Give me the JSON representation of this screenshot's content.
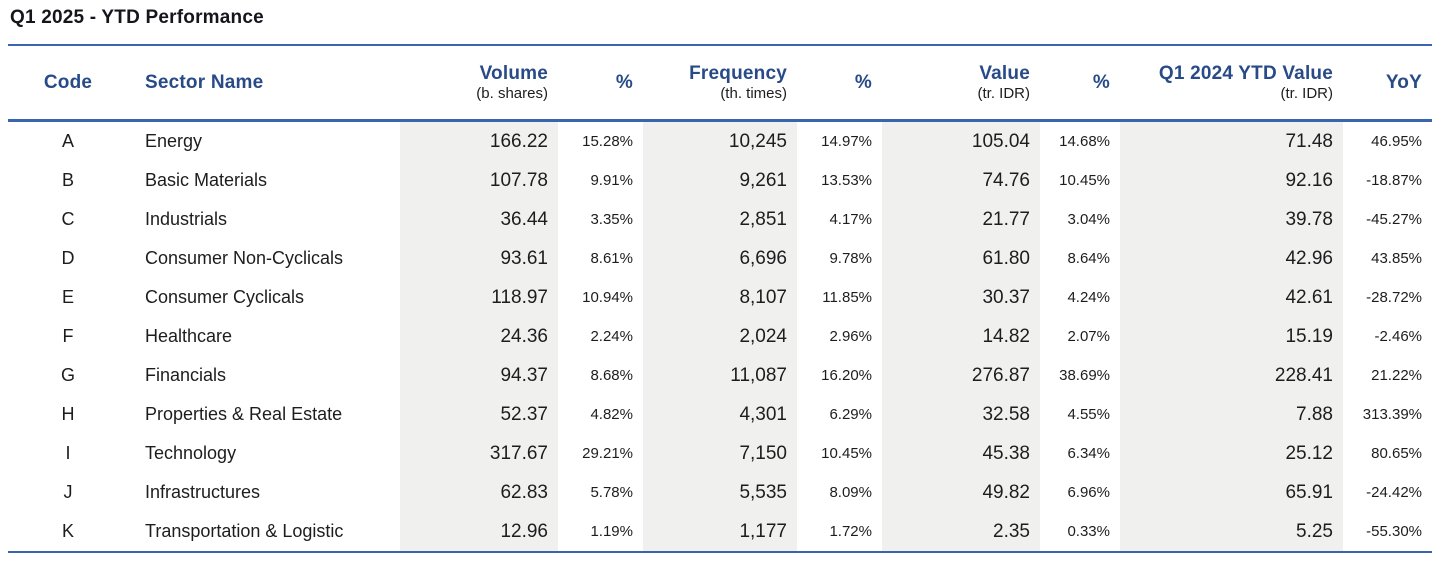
{
  "title": "Q1 2025 - YTD Performance",
  "colors": {
    "header_blue": "#284b87",
    "rule_blue": "#3a64ad",
    "column_stripe_gray": "#f0f0ee",
    "text_dark": "#1d1d1f"
  },
  "chart_data": {
    "type": "table",
    "title": "Q1 2025 - YTD Performance",
    "columns": [
      {
        "key": "code",
        "label": "Code",
        "unit": ""
      },
      {
        "key": "sector",
        "label": "Sector Name",
        "unit": ""
      },
      {
        "key": "volume",
        "label": "Volume",
        "unit": "(b. shares)"
      },
      {
        "key": "volume_pct",
        "label": "%",
        "unit": ""
      },
      {
        "key": "frequency",
        "label": "Frequency",
        "unit": "(th. times)"
      },
      {
        "key": "frequency_pct",
        "label": "%",
        "unit": ""
      },
      {
        "key": "value",
        "label": "Value",
        "unit": "(tr. IDR)"
      },
      {
        "key": "value_pct",
        "label": "%",
        "unit": ""
      },
      {
        "key": "q1_2024_ytd_value",
        "label": "Q1 2024 YTD Value",
        "unit": "(tr. IDR)"
      },
      {
        "key": "yoy",
        "label": "YoY",
        "unit": ""
      }
    ],
    "rows": [
      {
        "code": "A",
        "sector": "Energy",
        "volume": "166.22",
        "volume_pct": "15.28%",
        "frequency": "10,245",
        "frequency_pct": "14.97%",
        "value": "105.04",
        "value_pct": "14.68%",
        "q1_2024_ytd_value": "71.48",
        "yoy": "46.95%"
      },
      {
        "code": "B",
        "sector": "Basic Materials",
        "volume": "107.78",
        "volume_pct": "9.91%",
        "frequency": "9,261",
        "frequency_pct": "13.53%",
        "value": "74.76",
        "value_pct": "10.45%",
        "q1_2024_ytd_value": "92.16",
        "yoy": "-18.87%"
      },
      {
        "code": "C",
        "sector": "Industrials",
        "volume": "36.44",
        "volume_pct": "3.35%",
        "frequency": "2,851",
        "frequency_pct": "4.17%",
        "value": "21.77",
        "value_pct": "3.04%",
        "q1_2024_ytd_value": "39.78",
        "yoy": "-45.27%"
      },
      {
        "code": "D",
        "sector": "Consumer Non-Cyclicals",
        "volume": "93.61",
        "volume_pct": "8.61%",
        "frequency": "6,696",
        "frequency_pct": "9.78%",
        "value": "61.80",
        "value_pct": "8.64%",
        "q1_2024_ytd_value": "42.96",
        "yoy": "43.85%"
      },
      {
        "code": "E",
        "sector": "Consumer Cyclicals",
        "volume": "118.97",
        "volume_pct": "10.94%",
        "frequency": "8,107",
        "frequency_pct": "11.85%",
        "value": "30.37",
        "value_pct": "4.24%",
        "q1_2024_ytd_value": "42.61",
        "yoy": "-28.72%"
      },
      {
        "code": "F",
        "sector": "Healthcare",
        "volume": "24.36",
        "volume_pct": "2.24%",
        "frequency": "2,024",
        "frequency_pct": "2.96%",
        "value": "14.82",
        "value_pct": "2.07%",
        "q1_2024_ytd_value": "15.19",
        "yoy": "-2.46%"
      },
      {
        "code": "G",
        "sector": "Financials",
        "volume": "94.37",
        "volume_pct": "8.68%",
        "frequency": "11,087",
        "frequency_pct": "16.20%",
        "value": "276.87",
        "value_pct": "38.69%",
        "q1_2024_ytd_value": "228.41",
        "yoy": "21.22%"
      },
      {
        "code": "H",
        "sector": "Properties & Real Estate",
        "volume": "52.37",
        "volume_pct": "4.82%",
        "frequency": "4,301",
        "frequency_pct": "6.29%",
        "value": "32.58",
        "value_pct": "4.55%",
        "q1_2024_ytd_value": "7.88",
        "yoy": "313.39%"
      },
      {
        "code": "I",
        "sector": "Technology",
        "volume": "317.67",
        "volume_pct": "29.21%",
        "frequency": "7,150",
        "frequency_pct": "10.45%",
        "value": "45.38",
        "value_pct": "6.34%",
        "q1_2024_ytd_value": "25.12",
        "yoy": "80.65%"
      },
      {
        "code": "J",
        "sector": "Infrastructures",
        "volume": "62.83",
        "volume_pct": "5.78%",
        "frequency": "5,535",
        "frequency_pct": "8.09%",
        "value": "49.82",
        "value_pct": "6.96%",
        "q1_2024_ytd_value": "65.91",
        "yoy": "-24.42%"
      },
      {
        "code": "K",
        "sector": "Transportation & Logistic",
        "volume": "12.96",
        "volume_pct": "1.19%",
        "frequency": "1,177",
        "frequency_pct": "1.72%",
        "value": "2.35",
        "value_pct": "0.33%",
        "q1_2024_ytd_value": "5.25",
        "yoy": "-55.30%"
      }
    ]
  }
}
